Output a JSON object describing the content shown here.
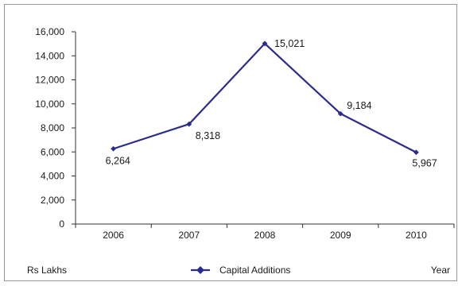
{
  "chart_data": {
    "type": "line",
    "categories": [
      "2006",
      "2007",
      "2008",
      "2009",
      "2010"
    ],
    "series": [
      {
        "name": "Capital Additions",
        "values": [
          6264,
          8318,
          15021,
          9184,
          5967
        ],
        "data_labels": [
          "6,264",
          "8,318",
          "15,021",
          "9,184",
          "5,967"
        ],
        "color": "#2b2b8c"
      }
    ],
    "y_ticks": [
      0,
      2000,
      4000,
      6000,
      8000,
      10000,
      12000,
      14000,
      16000
    ],
    "y_tick_labels": [
      "0",
      "2,000",
      "4,000",
      "6,000",
      "8,000",
      "10,000",
      "12,000",
      "14,000",
      "16,000"
    ],
    "ylim": [
      0,
      16000
    ],
    "ylabel": "Rs Lakhs",
    "xlabel": "Year",
    "legend_position": "bottom-center",
    "grid": false
  },
  "colors": {
    "line": "#2b2b8c",
    "axis": "#333333",
    "frame": "#9a9a9a"
  }
}
